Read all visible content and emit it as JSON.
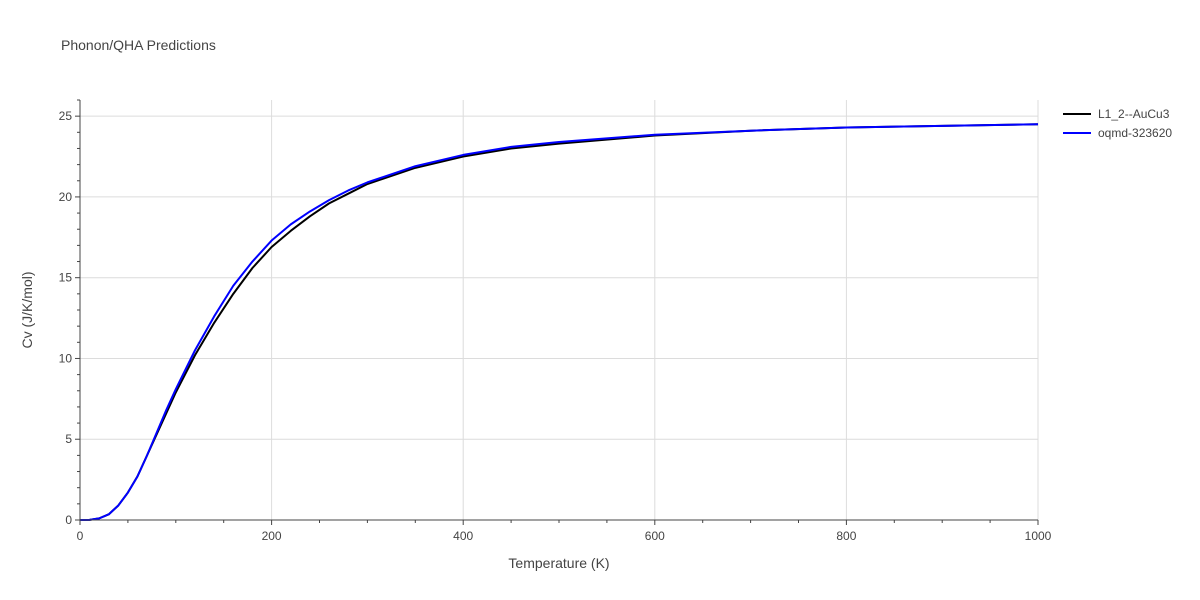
{
  "chart_data": {
    "type": "line",
    "title": "Phonon/QHA Predictions",
    "xlabel": "Temperature (K)",
    "ylabel": "Cv (J/K/mol)",
    "xlim": [
      0,
      1000
    ],
    "ylim": [
      0,
      26
    ],
    "x_ticks": [
      "0",
      "200",
      "400",
      "600",
      "800",
      "1000"
    ],
    "y_ticks": [
      "0",
      "5",
      "10",
      "15",
      "20",
      "25"
    ],
    "x_tick_values": [
      0,
      200,
      400,
      600,
      800,
      1000
    ],
    "y_tick_values": [
      0,
      5,
      10,
      15,
      20,
      25
    ],
    "x_minor_step": 50,
    "y_minor_step": 1,
    "grid": true,
    "legend_position": "top-right",
    "series": [
      {
        "name": "L1_2--AuCu3",
        "color": "#000000",
        "x": [
          0,
          10,
          20,
          30,
          40,
          50,
          60,
          70,
          80,
          90,
          100,
          120,
          140,
          160,
          180,
          200,
          220,
          240,
          260,
          280,
          300,
          350,
          400,
          450,
          500,
          600,
          700,
          800,
          900,
          1000
        ],
        "y": [
          0,
          0.01,
          0.1,
          0.35,
          0.9,
          1.7,
          2.7,
          4.0,
          5.3,
          6.6,
          7.9,
          10.2,
          12.2,
          14.0,
          15.6,
          16.9,
          17.9,
          18.8,
          19.6,
          20.2,
          20.8,
          21.8,
          22.5,
          23.0,
          23.3,
          23.8,
          24.1,
          24.3,
          24.4,
          24.5
        ]
      },
      {
        "name": "oqmd-323620",
        "color": "#0000ff",
        "x": [
          0,
          10,
          20,
          30,
          40,
          50,
          60,
          70,
          80,
          90,
          100,
          120,
          140,
          160,
          180,
          200,
          220,
          240,
          260,
          280,
          300,
          350,
          400,
          450,
          500,
          600,
          700,
          800,
          900,
          1000
        ],
        "y": [
          0,
          0.01,
          0.1,
          0.35,
          0.9,
          1.7,
          2.7,
          4.0,
          5.4,
          6.8,
          8.1,
          10.5,
          12.6,
          14.5,
          16.0,
          17.3,
          18.3,
          19.1,
          19.8,
          20.4,
          20.9,
          21.9,
          22.6,
          23.1,
          23.4,
          23.85,
          24.1,
          24.3,
          24.4,
          24.5
        ]
      }
    ]
  }
}
